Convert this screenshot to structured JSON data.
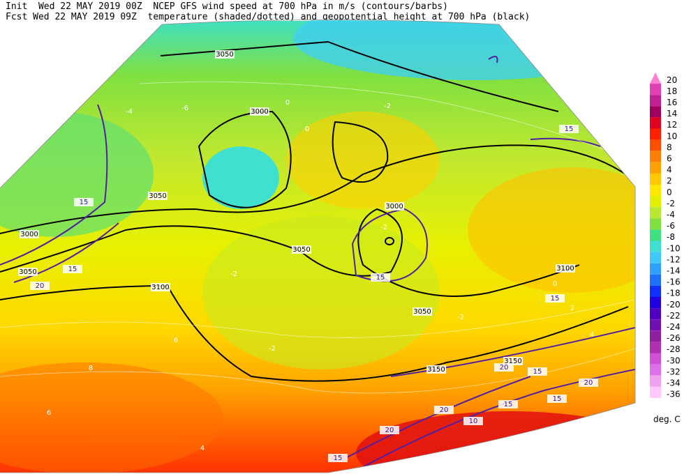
{
  "header": {
    "line1": "Init  Wed 22 MAY 2019 00Z  NCEP GFS wind speed at 700 hPa in m/s (contours/barbs)",
    "line2": "Fcst Wed 22 MAY 2019 09Z  temperature (shaded/dotted) and geopotential height at 700 hPa (black)"
  },
  "legend": {
    "unit": "deg. C",
    "items": [
      {
        "label": 20,
        "color": "#ff80d0"
      },
      {
        "label": 18,
        "color": "#e040b0"
      },
      {
        "label": 16,
        "color": "#c02090"
      },
      {
        "label": 14,
        "color": "#a00060"
      },
      {
        "label": 12,
        "color": "#e00020"
      },
      {
        "label": 10,
        "color": "#ff2000"
      },
      {
        "label": 8,
        "color": "#ff5000"
      },
      {
        "label": 6,
        "color": "#ff8000"
      },
      {
        "label": 4,
        "color": "#ffa000"
      },
      {
        "label": 2,
        "color": "#ffc800"
      },
      {
        "label": 0,
        "color": "#ffe800"
      },
      {
        "label": -2,
        "color": "#e0f000"
      },
      {
        "label": -4,
        "color": "#b8e830"
      },
      {
        "label": -6,
        "color": "#80e040"
      },
      {
        "label": -8,
        "color": "#40e080"
      },
      {
        "label": -10,
        "color": "#40e0d0"
      },
      {
        "label": -12,
        "color": "#40c8f8"
      },
      {
        "label": -14,
        "color": "#30a0ff"
      },
      {
        "label": -16,
        "color": "#2070ff"
      },
      {
        "label": -18,
        "color": "#1030ff"
      },
      {
        "label": -20,
        "color": "#2000e0"
      },
      {
        "label": -22,
        "color": "#5000c0"
      },
      {
        "label": -24,
        "color": "#7010b0"
      },
      {
        "label": -26,
        "color": "#9020a0"
      },
      {
        "label": -28,
        "color": "#b030b0"
      },
      {
        "label": -30,
        "color": "#d050d8"
      },
      {
        "label": -32,
        "color": "#e070e8"
      },
      {
        "label": -34,
        "color": "#f0a0f0"
      },
      {
        "label": -36,
        "color": "#ffc8ff"
      }
    ]
  },
  "height_labels": [
    "3050",
    "3000",
    "3050",
    "3000",
    "3050",
    "3100",
    "3050",
    "3000",
    "3100",
    "3050",
    "3150",
    "3150"
  ],
  "wind_labels": [
    "15",
    "15",
    "20",
    "15",
    "15",
    "15",
    "20",
    "15",
    "20",
    "15",
    "20",
    "15",
    "20",
    "10",
    "15"
  ],
  "temperature_labels": [
    "0",
    "-2",
    "0",
    "-4",
    "-6",
    "-2",
    "-2",
    "-2",
    "4",
    "6",
    "8",
    "6",
    "-2",
    "2",
    "0",
    "4"
  ]
}
